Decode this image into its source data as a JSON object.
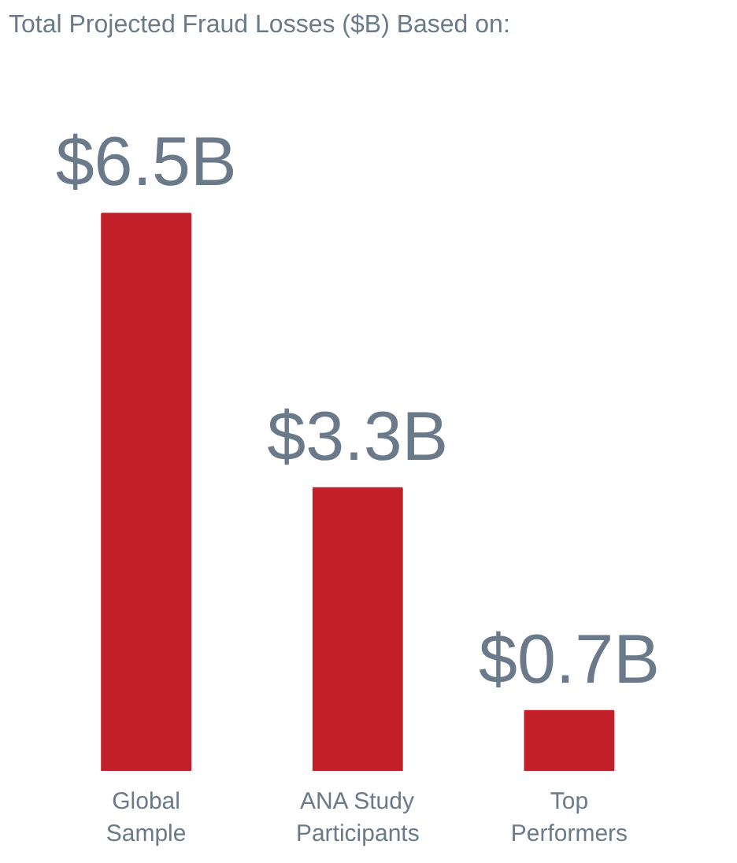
{
  "chart_data": {
    "type": "bar",
    "title": "Total Projected Fraud Losses ($B) Based on:",
    "categories": [
      "Global\nSample",
      "ANA Study\nParticipants",
      "Top\nPerformers"
    ],
    "values": [
      6.5,
      3.3,
      0.7
    ],
    "value_labels": [
      "$6.5B",
      "$3.3B",
      "$0.7B"
    ],
    "color": "#c1202a",
    "grid": false
  }
}
